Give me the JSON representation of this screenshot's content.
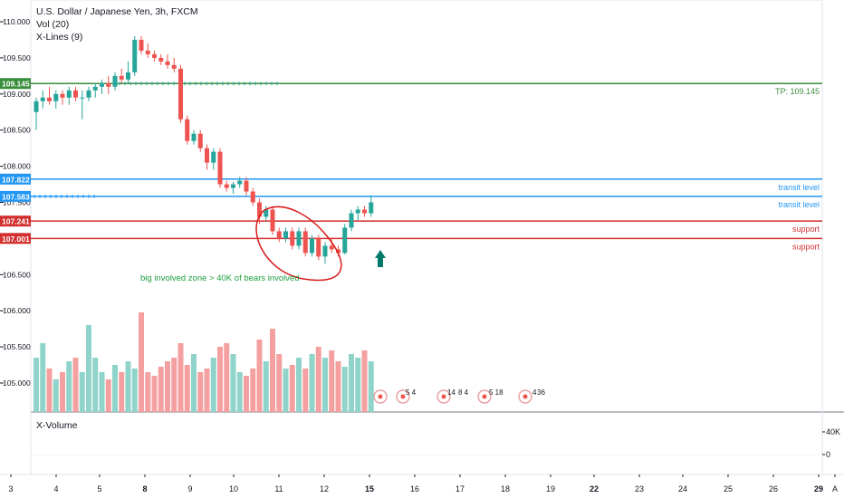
{
  "legend": {
    "symbol": "U.S. Dollar / Japanese Yen, 3h, FXCM",
    "study1": "Vol (20)",
    "study2": "X-Lines (9)"
  },
  "lower_pane_label": "X-Volume",
  "lower_pane_axis": [
    "40K",
    "0"
  ],
  "colors": {
    "up": "#26a69a",
    "down": "#ef5350",
    "vol_up": "#8fd3ca",
    "vol_down": "#f5a0a0",
    "tp_line": "#388e3c",
    "transit_line": "#2196f3",
    "support_line": "#d32f2f",
    "annotation_green": "#1b9e3e",
    "circle": "#d81b1b",
    "arrow": "#00796b"
  },
  "levels": [
    {
      "price": 109.145,
      "tag": "109.145",
      "label": "TP: 109.145",
      "kind": "tp"
    },
    {
      "price": 107.822,
      "tag": "107.822",
      "label": "transit level",
      "kind": "transit"
    },
    {
      "price": 107.583,
      "tag": "107.583",
      "label": "transit level",
      "kind": "transit"
    },
    {
      "price": 107.241,
      "tag": "107.241",
      "label": "support",
      "kind": "support"
    },
    {
      "price": 107.001,
      "tag": "107.001",
      "label": "support",
      "kind": "support"
    }
  ],
  "annotation_text": "big involved zone > 40K of bears involved",
  "event_labels": [
    "5 4",
    "14",
    "8 4",
    "5 18",
    "4",
    "36"
  ],
  "chart_data": {
    "type": "candlestick",
    "y_ticks": [
      "110.000",
      "109.500",
      "109.000",
      "108.500",
      "108.000",
      "107.500",
      "106.500",
      "106.000",
      "105.500",
      "105.000"
    ],
    "x_ticks": [
      "3",
      "4",
      "5",
      "8",
      "9",
      "10",
      "11",
      "12",
      "15",
      "16",
      "17",
      "18",
      "19",
      "22",
      "23",
      "24",
      "25",
      "26",
      "29",
      "A"
    ],
    "ylim": [
      104.6,
      110.2
    ],
    "candles": [
      {
        "o": 108.75,
        "h": 108.95,
        "l": 108.5,
        "c": 108.9
      },
      {
        "o": 108.9,
        "h": 109.05,
        "l": 108.8,
        "c": 108.95
      },
      {
        "o": 108.95,
        "h": 109.1,
        "l": 108.85,
        "c": 108.9
      },
      {
        "o": 108.9,
        "h": 109.05,
        "l": 108.8,
        "c": 109.0
      },
      {
        "o": 109.0,
        "h": 109.05,
        "l": 108.85,
        "c": 108.95
      },
      {
        "o": 108.95,
        "h": 109.1,
        "l": 108.85,
        "c": 109.05
      },
      {
        "o": 109.05,
        "h": 109.1,
        "l": 108.9,
        "c": 108.95
      },
      {
        "o": 108.95,
        "h": 109.05,
        "l": 108.65,
        "c": 108.95
      },
      {
        "o": 108.95,
        "h": 109.1,
        "l": 108.9,
        "c": 109.05
      },
      {
        "o": 109.05,
        "h": 109.15,
        "l": 108.95,
        "c": 109.1
      },
      {
        "o": 109.1,
        "h": 109.2,
        "l": 109.0,
        "c": 109.15
      },
      {
        "o": 109.15,
        "h": 109.25,
        "l": 109.0,
        "c": 109.1
      },
      {
        "o": 109.1,
        "h": 109.3,
        "l": 109.05,
        "c": 109.25
      },
      {
        "o": 109.25,
        "h": 109.35,
        "l": 109.15,
        "c": 109.2
      },
      {
        "o": 109.2,
        "h": 109.45,
        "l": 109.15,
        "c": 109.3
      },
      {
        "o": 109.3,
        "h": 109.8,
        "l": 109.25,
        "c": 109.75
      },
      {
        "o": 109.75,
        "h": 109.8,
        "l": 109.55,
        "c": 109.6
      },
      {
        "o": 109.6,
        "h": 109.7,
        "l": 109.5,
        "c": 109.55
      },
      {
        "o": 109.55,
        "h": 109.6,
        "l": 109.45,
        "c": 109.5
      },
      {
        "o": 109.5,
        "h": 109.55,
        "l": 109.4,
        "c": 109.45
      },
      {
        "o": 109.45,
        "h": 109.55,
        "l": 109.35,
        "c": 109.4
      },
      {
        "o": 109.4,
        "h": 109.5,
        "l": 109.3,
        "c": 109.35
      },
      {
        "o": 109.35,
        "h": 109.4,
        "l": 108.6,
        "c": 108.65
      },
      {
        "o": 108.65,
        "h": 108.7,
        "l": 108.3,
        "c": 108.35
      },
      {
        "o": 108.35,
        "h": 108.5,
        "l": 108.3,
        "c": 108.45
      },
      {
        "o": 108.45,
        "h": 108.5,
        "l": 108.2,
        "c": 108.25
      },
      {
        "o": 108.25,
        "h": 108.3,
        "l": 107.95,
        "c": 108.05
      },
      {
        "o": 108.05,
        "h": 108.25,
        "l": 107.95,
        "c": 108.2
      },
      {
        "o": 108.2,
        "h": 108.25,
        "l": 107.7,
        "c": 107.75
      },
      {
        "o": 107.75,
        "h": 107.8,
        "l": 107.65,
        "c": 107.7
      },
      {
        "o": 107.7,
        "h": 107.78,
        "l": 107.62,
        "c": 107.75
      },
      {
        "o": 107.75,
        "h": 107.85,
        "l": 107.7,
        "c": 107.8
      },
      {
        "o": 107.8,
        "h": 107.85,
        "l": 107.6,
        "c": 107.65
      },
      {
        "o": 107.65,
        "h": 107.7,
        "l": 107.45,
        "c": 107.5
      },
      {
        "o": 107.5,
        "h": 107.55,
        "l": 107.2,
        "c": 107.3
      },
      {
        "o": 107.3,
        "h": 107.45,
        "l": 107.25,
        "c": 107.4
      },
      {
        "o": 107.4,
        "h": 107.45,
        "l": 107.05,
        "c": 107.1
      },
      {
        "o": 107.1,
        "h": 107.15,
        "l": 106.95,
        "c": 107.0
      },
      {
        "o": 107.0,
        "h": 107.15,
        "l": 106.95,
        "c": 107.1
      },
      {
        "o": 107.1,
        "h": 107.15,
        "l": 106.85,
        "c": 106.9
      },
      {
        "o": 106.9,
        "h": 107.15,
        "l": 106.85,
        "c": 107.1
      },
      {
        "o": 107.1,
        "h": 107.15,
        "l": 106.75,
        "c": 106.8
      },
      {
        "o": 106.8,
        "h": 107.05,
        "l": 106.75,
        "c": 107.0
      },
      {
        "o": 107.0,
        "h": 107.05,
        "l": 106.7,
        "c": 106.75
      },
      {
        "o": 106.75,
        "h": 106.95,
        "l": 106.65,
        "c": 106.9
      },
      {
        "o": 106.9,
        "h": 107.0,
        "l": 106.8,
        "c": 106.85
      },
      {
        "o": 106.85,
        "h": 106.9,
        "l": 106.75,
        "c": 106.8
      },
      {
        "o": 106.8,
        "h": 107.2,
        "l": 106.78,
        "c": 107.15
      },
      {
        "o": 107.15,
        "h": 107.4,
        "l": 107.1,
        "c": 107.35
      },
      {
        "o": 107.35,
        "h": 107.45,
        "l": 107.25,
        "c": 107.4
      },
      {
        "o": 107.4,
        "h": 107.45,
        "l": 107.3,
        "c": 107.35
      },
      {
        "o": 107.35,
        "h": 107.6,
        "l": 107.3,
        "c": 107.5
      }
    ],
    "volumes": [
      30,
      38,
      24,
      18,
      22,
      28,
      30,
      22,
      48,
      30,
      22,
      18,
      26,
      22,
      28,
      24,
      55,
      22,
      20,
      25,
      28,
      30,
      38,
      26,
      32,
      22,
      24,
      30,
      36,
      38,
      32,
      22,
      20,
      24,
      40,
      28,
      46,
      32,
      24,
      26,
      30,
      24,
      32,
      36,
      30,
      34,
      28,
      25,
      32,
      30,
      34,
      28
    ],
    "volume_scale_max": 60
  }
}
